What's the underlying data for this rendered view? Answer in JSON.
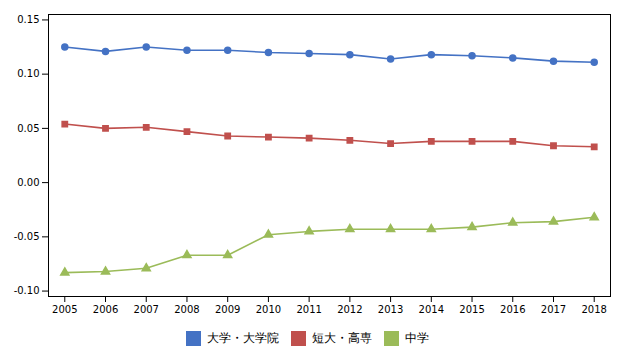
{
  "chart_data": {
    "type": "line",
    "x": [
      2005,
      2006,
      2007,
      2008,
      2009,
      2010,
      2011,
      2012,
      2013,
      2014,
      2015,
      2016,
      2017,
      2018
    ],
    "series": [
      {
        "name": "大学・大学院",
        "color": "#4472C4",
        "marker": "circle",
        "values": [
          0.125,
          0.121,
          0.125,
          0.122,
          0.122,
          0.12,
          0.119,
          0.118,
          0.114,
          0.118,
          0.117,
          0.115,
          0.112,
          0.111
        ]
      },
      {
        "name": "短大・高専",
        "color": "#C0504D",
        "marker": "square",
        "values": [
          0.054,
          0.05,
          0.051,
          0.047,
          0.043,
          0.042,
          0.041,
          0.039,
          0.036,
          0.038,
          0.038,
          0.038,
          0.034,
          0.033
        ]
      },
      {
        "name": "中学",
        "color": "#9BBB59",
        "marker": "triangle",
        "values": [
          -0.083,
          -0.082,
          -0.079,
          -0.067,
          -0.067,
          -0.048,
          -0.045,
          -0.043,
          -0.043,
          -0.043,
          -0.041,
          -0.037,
          -0.036,
          -0.032
        ]
      }
    ],
    "xlim": [
      2004.6,
      2018.4
    ],
    "xticks": [
      2005,
      2006,
      2007,
      2008,
      2009,
      2010,
      2011,
      2012,
      2013,
      2014,
      2015,
      2016,
      2017,
      2018
    ],
    "ylim": [
      -0.105,
      0.155
    ],
    "yticks": [
      {
        "value": -0.1,
        "label": "-0.10"
      },
      {
        "value": -0.05,
        "label": "-0.05"
      },
      {
        "value": 0.0,
        "label": "0.00"
      },
      {
        "value": 0.05,
        "label": "0.05"
      },
      {
        "value": 0.1,
        "label": "0.10"
      },
      {
        "value": 0.15,
        "label": "0.15"
      }
    ],
    "grid": false,
    "legend": "bottom"
  }
}
